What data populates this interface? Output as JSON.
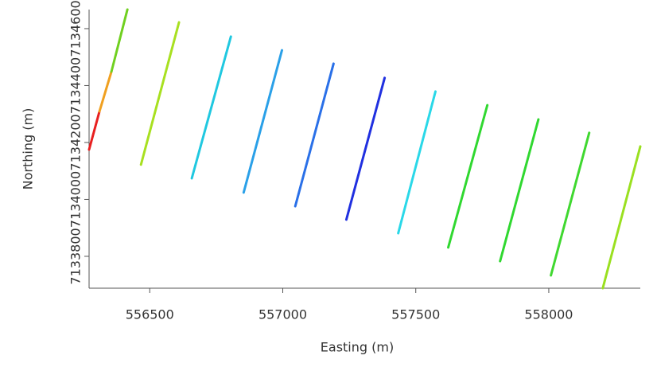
{
  "chart_data": {
    "type": "line",
    "x_label": "Easting (m)",
    "y_label": "Northing (m)",
    "xlim": [
      556272,
      558344
    ],
    "ylim": [
      7133688,
      7134667
    ],
    "xticks": [
      556500,
      557000,
      557500,
      558000
    ],
    "yticks": [
      7133800,
      7134000,
      7134200,
      7134400,
      7134600
    ],
    "series": [
      {
        "color": "#e82020",
        "x": [
          556272,
          556311
        ],
        "values": [
          7134175,
          7134309
        ]
      },
      {
        "color": "#f0a020",
        "x": [
          556311,
          556356
        ],
        "values": [
          7134309,
          7134449
        ]
      },
      {
        "color": "#70d020",
        "x": [
          556356,
          556416
        ],
        "values": [
          7134449,
          7134667
        ]
      },
      {
        "color": "#a8e020",
        "x": [
          556467,
          556610
        ],
        "values": [
          7134122,
          7134622
        ]
      },
      {
        "color": "#20c8e0",
        "x": [
          556658,
          556805
        ],
        "values": [
          7134074,
          7134572
        ]
      },
      {
        "color": "#2aa0e8",
        "x": [
          556853,
          556997
        ],
        "values": [
          7134024,
          7134524
        ]
      },
      {
        "color": "#2a70e8",
        "x": [
          557047,
          557191
        ],
        "values": [
          7133976,
          7134477
        ]
      },
      {
        "color": "#2030e0",
        "x": [
          557239,
          557383
        ],
        "values": [
          7133929,
          7134427
        ]
      },
      {
        "color": "#2ad8e8",
        "x": [
          557434,
          557574
        ],
        "values": [
          7133881,
          7134379
        ]
      },
      {
        "color": "#30d830",
        "x": [
          557622,
          557769
        ],
        "values": [
          7133831,
          7134331
        ]
      },
      {
        "color": "#30d830",
        "x": [
          557817,
          557961
        ],
        "values": [
          7133783,
          7134281
        ]
      },
      {
        "color": "#40d830",
        "x": [
          558008,
          558152
        ],
        "values": [
          7133733,
          7134234
        ]
      },
      {
        "color": "#9ae020",
        "x": [
          558203,
          558344
        ],
        "values": [
          7133688,
          7134186
        ]
      }
    ]
  }
}
